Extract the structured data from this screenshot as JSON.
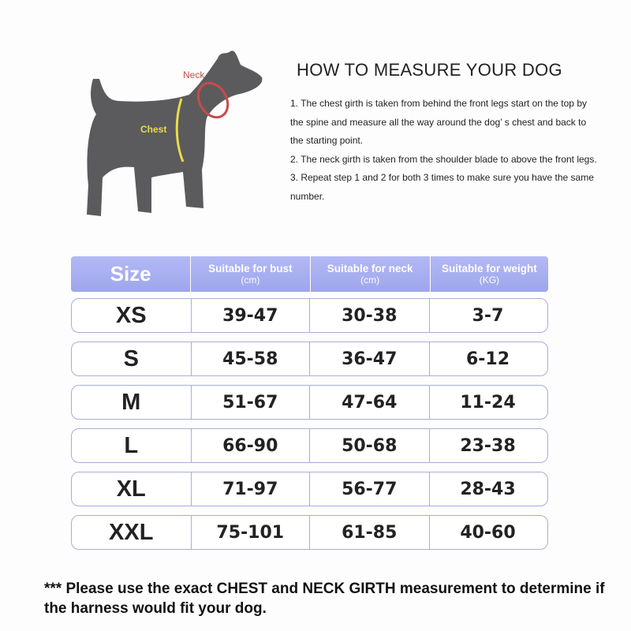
{
  "diagram": {
    "neck_label": "Neck",
    "chest_label": "Chest"
  },
  "instructions": {
    "title": "HOW TO MEASURE YOUR DOG",
    "steps": [
      "1. The chest girth is taken from behind the front legs start on the top by the spine and measure all the way around the dog’ s chest and back to the starting point.",
      "2. The neck girth is taken from the shoulder blade to above the front legs.",
      "3. Repeat step 1 and 2 for both 3 times to make sure you have the same number."
    ]
  },
  "table": {
    "header": [
      {
        "label": "Size"
      },
      {
        "label": "Suitable for bust",
        "unit": "(cm)"
      },
      {
        "label": "Suitable for neck",
        "unit": "(cm)"
      },
      {
        "label": "Suitable for weight",
        "unit": "(KG)"
      }
    ],
    "rows": [
      [
        "XS",
        "39-47",
        "30-38",
        "3-7"
      ],
      [
        "S",
        "45-58",
        "36-47",
        "6-12"
      ],
      [
        "M",
        "51-67",
        "47-64",
        "11-24"
      ],
      [
        "L",
        "66-90",
        "50-68",
        "23-38"
      ],
      [
        "XL",
        "71-97",
        "56-77",
        "28-43"
      ],
      [
        "XXL",
        "75-101",
        "61-85",
        "40-60"
      ]
    ]
  },
  "note": "*** Please use the exact CHEST and NECK GIRTH measurement to determine if the harness would fit your dog."
}
